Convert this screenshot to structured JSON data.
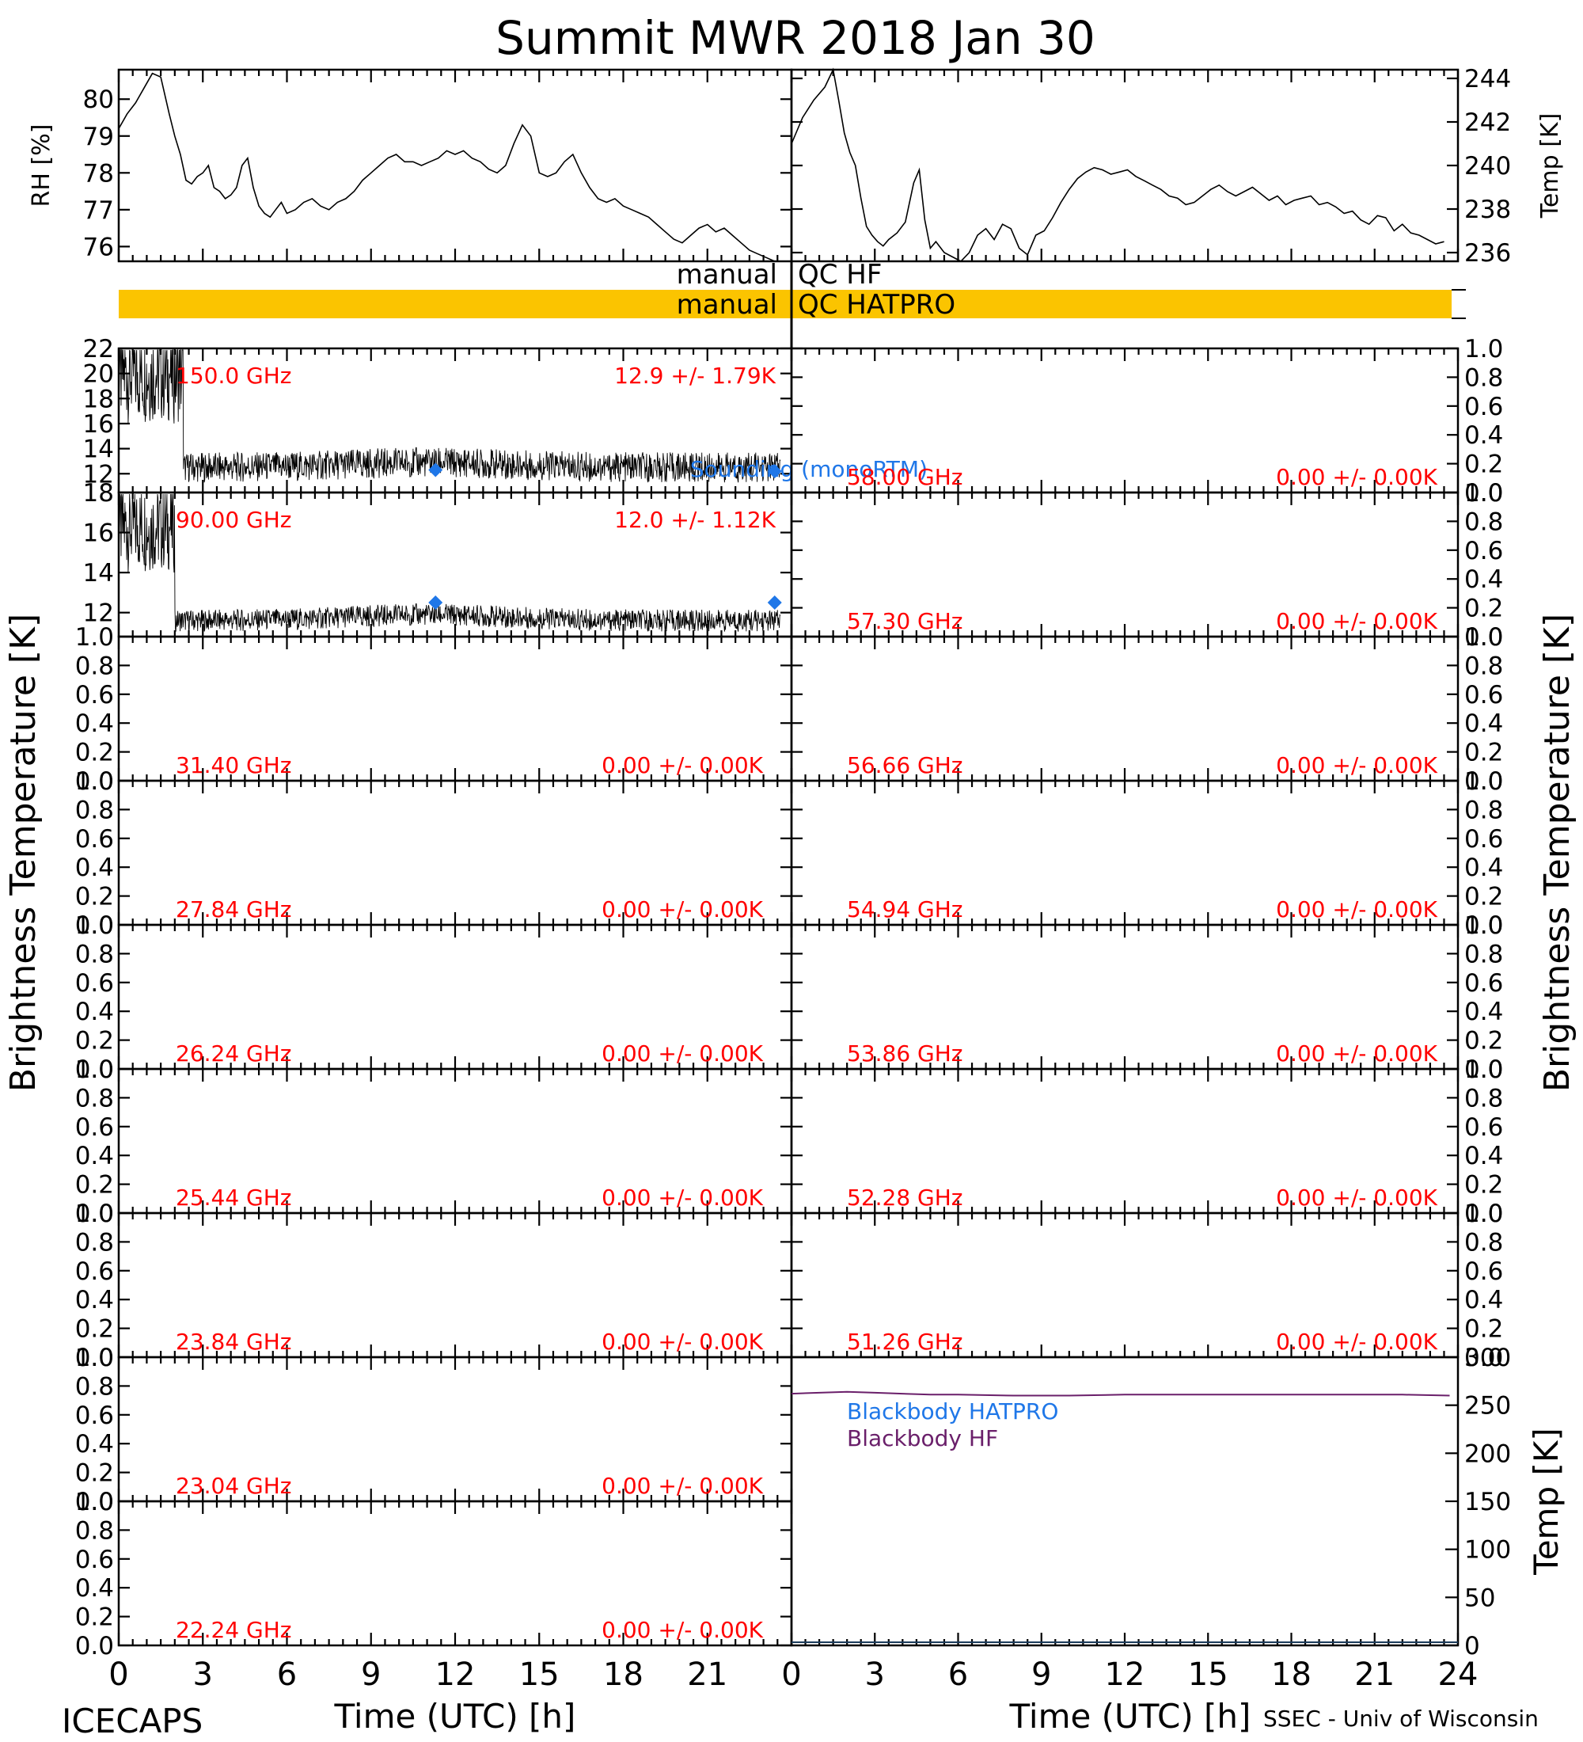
{
  "title": "Summit MWR 2018 Jan 30",
  "footer": {
    "left": "ICECAPS",
    "right": "SSEC - Univ of Wisconsin"
  },
  "colors": {
    "red": "#ff0000",
    "blue": "#1f77e8",
    "purple": "#6a1f6a",
    "qc_bar": "#fbc400",
    "black": "#000000"
  },
  "qc": {
    "hf": {
      "left": "manual",
      "right": "QC HF"
    },
    "hatpro": {
      "left": "manual",
      "right": "QC HATPRO"
    }
  },
  "chart_data": [
    {
      "id": "rh",
      "type": "line",
      "ylabel": "RH [%]",
      "ylim": [
        75.6,
        80.8
      ],
      "yticks": [
        "76",
        "77",
        "78",
        "79",
        "80"
      ],
      "x_hours": [
        0,
        0.3,
        0.6,
        0.9,
        1.2,
        1.5,
        1.8,
        2.0,
        2.2,
        2.4,
        2.6,
        2.8,
        3.0,
        3.2,
        3.4,
        3.6,
        3.8,
        4.0,
        4.2,
        4.4,
        4.6,
        4.8,
        5.0,
        5.2,
        5.4,
        5.6,
        5.8,
        6.0,
        6.3,
        6.6,
        6.9,
        7.2,
        7.5,
        7.8,
        8.1,
        8.4,
        8.7,
        9.0,
        9.3,
        9.6,
        9.9,
        10.2,
        10.5,
        10.8,
        11.1,
        11.4,
        11.7,
        12.0,
        12.3,
        12.6,
        12.9,
        13.2,
        13.5,
        13.8,
        14.1,
        14.4,
        14.7,
        15.0,
        15.3,
        15.6,
        15.9,
        16.2,
        16.5,
        16.8,
        17.1,
        17.4,
        17.7,
        18.0,
        18.3,
        18.6,
        18.9,
        19.2,
        19.5,
        19.8,
        20.1,
        20.4,
        20.7,
        21.0,
        21.3,
        21.6,
        21.9,
        22.2,
        22.5,
        22.8,
        23.1,
        23.4
      ],
      "values": [
        79.2,
        79.6,
        79.9,
        80.3,
        80.7,
        80.6,
        79.6,
        79.0,
        78.5,
        77.8,
        77.7,
        77.9,
        78.0,
        78.2,
        77.6,
        77.5,
        77.3,
        77.4,
        77.6,
        78.2,
        78.4,
        77.6,
        77.1,
        76.9,
        76.8,
        77.0,
        77.2,
        76.9,
        77.0,
        77.2,
        77.3,
        77.1,
        77.0,
        77.2,
        77.3,
        77.5,
        77.8,
        78.0,
        78.2,
        78.4,
        78.5,
        78.3,
        78.3,
        78.2,
        78.3,
        78.4,
        78.6,
        78.5,
        78.6,
        78.4,
        78.3,
        78.1,
        78.0,
        78.2,
        78.8,
        79.3,
        79.0,
        78.0,
        77.9,
        78.0,
        78.3,
        78.5,
        78.0,
        77.6,
        77.3,
        77.2,
        77.3,
        77.1,
        77.0,
        76.9,
        76.8,
        76.6,
        76.4,
        76.2,
        76.1,
        76.3,
        76.5,
        76.6,
        76.4,
        76.5,
        76.3,
        76.1,
        75.9,
        75.8,
        75.7,
        75.6
      ]
    },
    {
      "id": "temp",
      "type": "line",
      "ylabel": "Temp [K]",
      "ylim": [
        235.6,
        244.4
      ],
      "yticks": [
        "236",
        "238",
        "240",
        "242",
        "244"
      ],
      "x_hours": [
        0,
        0.4,
        0.8,
        1.2,
        1.5,
        1.7,
        1.9,
        2.1,
        2.3,
        2.5,
        2.7,
        2.9,
        3.1,
        3.3,
        3.5,
        3.8,
        4.1,
        4.4,
        4.6,
        4.8,
        5.0,
        5.2,
        5.5,
        5.8,
        6.1,
        6.4,
        6.7,
        7.0,
        7.3,
        7.6,
        7.9,
        8.2,
        8.5,
        8.8,
        9.1,
        9.4,
        9.7,
        10.0,
        10.3,
        10.6,
        10.9,
        11.2,
        11.5,
        11.8,
        12.1,
        12.4,
        12.7,
        13.0,
        13.3,
        13.6,
        13.9,
        14.2,
        14.5,
        14.8,
        15.1,
        15.4,
        15.7,
        16.0,
        16.3,
        16.6,
        16.9,
        17.2,
        17.5,
        17.8,
        18.1,
        18.4,
        18.7,
        19.0,
        19.3,
        19.6,
        19.9,
        20.2,
        20.5,
        20.8,
        21.1,
        21.4,
        21.7,
        22.0,
        22.3,
        22.6,
        22.9,
        23.2,
        23.5
      ],
      "values": [
        241.0,
        242.2,
        243.0,
        243.6,
        244.4,
        243.0,
        241.5,
        240.6,
        240.0,
        238.5,
        237.2,
        236.8,
        236.5,
        236.3,
        236.6,
        236.9,
        237.4,
        239.2,
        239.8,
        237.5,
        236.2,
        236.5,
        236.0,
        235.8,
        235.6,
        236.0,
        236.8,
        237.1,
        236.6,
        237.3,
        237.1,
        236.2,
        235.9,
        236.8,
        237.0,
        237.6,
        238.3,
        238.9,
        239.4,
        239.7,
        239.9,
        239.8,
        239.6,
        239.7,
        239.8,
        239.5,
        239.3,
        239.1,
        238.9,
        238.6,
        238.5,
        238.2,
        238.3,
        238.6,
        238.9,
        239.1,
        238.8,
        238.6,
        238.8,
        239.0,
        238.7,
        238.4,
        238.6,
        238.2,
        238.4,
        238.5,
        238.6,
        238.2,
        238.3,
        238.1,
        237.8,
        237.9,
        237.5,
        237.3,
        237.7,
        237.6,
        237.0,
        237.3,
        236.9,
        236.8,
        236.6,
        236.4,
        236.5
      ]
    },
    {
      "id": "f150",
      "type": "line",
      "freq": "150.0 GHz",
      "stats": "12.9 +/-  1.79K",
      "ylim": [
        10.5,
        22
      ],
      "yticks": [
        "12",
        "14",
        "16",
        "18",
        "20",
        "22"
      ],
      "model": "left",
      "noise": {
        "x_end": 2.3,
        "pre_mean": 20.0,
        "pre_spread": 4.0,
        "mean": 12.5,
        "spread": 1.2,
        "bump_center": 11,
        "bump_amp": 0.4
      },
      "sounding_x_hours": [
        11.3,
        23.4
      ],
      "sounding_values": [
        12.3,
        12.2
      ],
      "sounding_label": "Sounding (monoRTM)"
    },
    {
      "id": "f90",
      "type": "line",
      "freq": "90.00 GHz",
      "stats": "12.0 +/-  1.12K",
      "ylim": [
        10.8,
        18
      ],
      "yticks": [
        "12",
        "14",
        "16",
        "18"
      ],
      "model": "left",
      "noise": {
        "x_end": 2.0,
        "pre_mean": 16.3,
        "pre_spread": 2.3,
        "mean": 11.6,
        "spread": 0.55,
        "bump_center": 11,
        "bump_amp": 0.3
      },
      "sounding_x_hours": [
        11.3,
        23.4
      ],
      "sounding_values": [
        12.5,
        12.5
      ]
    },
    {
      "id": "f31",
      "freq": "31.40 GHz",
      "stats": "0.00 +/-  0.00K",
      "col": "left"
    },
    {
      "id": "f27",
      "freq": "27.84 GHz",
      "stats": "0.00 +/-  0.00K",
      "col": "left"
    },
    {
      "id": "f26",
      "freq": "26.24 GHz",
      "stats": "0.00 +/-  0.00K",
      "col": "left"
    },
    {
      "id": "f25",
      "freq": "25.44 GHz",
      "stats": "0.00 +/-  0.00K",
      "col": "left"
    },
    {
      "id": "f23a",
      "freq": "23.84 GHz",
      "stats": "0.00 +/-  0.00K",
      "col": "left"
    },
    {
      "id": "f23b",
      "freq": "23.04 GHz",
      "stats": "0.00 +/-  0.00K",
      "col": "left"
    },
    {
      "id": "f22",
      "freq": "22.24 GHz",
      "stats": "0.00 +/-  0.00K",
      "col": "left"
    },
    {
      "id": "f58",
      "freq": "58.00 GHz",
      "stats": "0.00 +/-  0.00K",
      "col": "right"
    },
    {
      "id": "f57",
      "freq": "57.30 GHz",
      "stats": "0.00 +/-  0.00K",
      "col": "right"
    },
    {
      "id": "f56",
      "freq": "56.66 GHz",
      "stats": "0.00 +/-  0.00K",
      "col": "right"
    },
    {
      "id": "f54",
      "freq": "54.94 GHz",
      "stats": "0.00 +/-  0.00K",
      "col": "right"
    },
    {
      "id": "f53",
      "freq": "53.86 GHz",
      "stats": "0.00 +/-  0.00K",
      "col": "right"
    },
    {
      "id": "f52",
      "freq": "52.28 GHz",
      "stats": "0.00 +/-  0.00K",
      "col": "right"
    },
    {
      "id": "f51",
      "freq": "51.26 GHz",
      "stats": "0.00 +/-  0.00K",
      "col": "right"
    },
    {
      "id": "blackbody",
      "type": "line",
      "ylabel": "Temp [K]",
      "ylim": [
        0,
        300
      ],
      "yticks": [
        "0",
        "50",
        "100",
        "150",
        "200",
        "250",
        "300"
      ],
      "series": [
        {
          "name": "Blackbody HATPRO",
          "color": "blue",
          "x_hours": [],
          "values": []
        },
        {
          "name": "Blackbody HF",
          "color": "purple",
          "x_hours": [
            0,
            1,
            2,
            3,
            4,
            5,
            6,
            8,
            10,
            12,
            14,
            16,
            18,
            20,
            22,
            23.7
          ],
          "values": [
            262,
            263,
            264,
            263,
            262,
            261,
            261,
            260,
            260,
            261,
            261,
            261,
            261,
            261,
            261,
            260
          ]
        }
      ]
    }
  ],
  "empty_yticks": [
    "0.0",
    "0.2",
    "0.4",
    "0.6",
    "0.8",
    "1.0"
  ],
  "x_axis": {
    "label": "Time (UTC) [h]",
    "ticks": [
      "0",
      "3",
      "6",
      "9",
      "12",
      "15",
      "18",
      "21",
      "24"
    ],
    "xlim": [
      0,
      24
    ]
  },
  "ylabel_brightness": "Brightness Temperature [K]"
}
